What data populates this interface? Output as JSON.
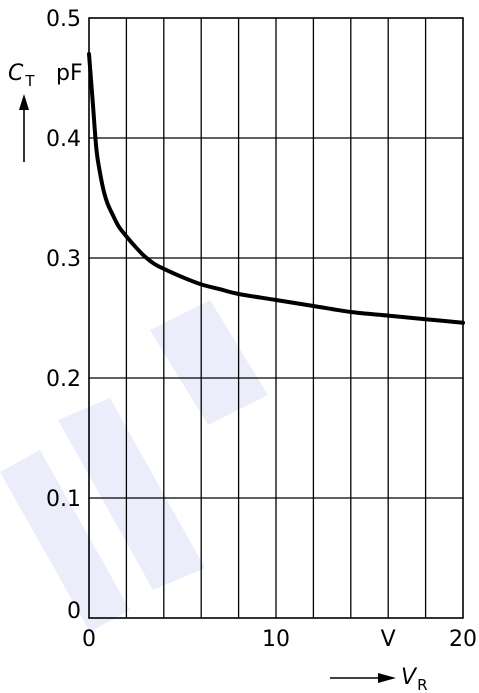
{
  "chart_data": {
    "type": "line",
    "x_label": {
      "symbol": "V",
      "subscript": "R",
      "unit": "V"
    },
    "y_label": {
      "symbol": "C",
      "subscript": "T",
      "unit": "pF"
    },
    "xlim": [
      0,
      20
    ],
    "ylim": [
      0,
      0.5
    ],
    "x_grid_step": 2,
    "y_grid_step": 0.1,
    "grid": true,
    "x_tick_labels": [
      {
        "value": 0,
        "text": "0"
      },
      {
        "value": 10,
        "text": "10"
      },
      {
        "value": 16,
        "text": "V"
      },
      {
        "value": 20,
        "text": "20"
      }
    ],
    "y_tick_labels": [
      {
        "value": 0,
        "text": "0"
      },
      {
        "value": 0.1,
        "text": "0.1"
      },
      {
        "value": 0.2,
        "text": "0.2"
      },
      {
        "value": 0.3,
        "text": "0.3"
      },
      {
        "value": 0.4,
        "text": "0.4"
      },
      {
        "value": 0.5,
        "text": "0.5"
      }
    ],
    "series": [
      {
        "x": [
          0.0,
          0.2,
          0.4,
          0.6,
          0.8,
          1.0,
          1.3,
          1.6,
          2.0,
          2.5,
          3.0,
          3.5,
          4.0,
          5.0,
          6.0,
          7.0,
          8.0,
          10.0,
          12.0,
          14.0,
          16.0,
          18.0,
          20.0
        ],
        "y": [
          0.47,
          0.43,
          0.39,
          0.37,
          0.355,
          0.345,
          0.335,
          0.326,
          0.318,
          0.309,
          0.301,
          0.295,
          0.291,
          0.284,
          0.278,
          0.274,
          0.27,
          0.265,
          0.26,
          0.255,
          0.252,
          0.249,
          0.246
        ]
      }
    ]
  }
}
